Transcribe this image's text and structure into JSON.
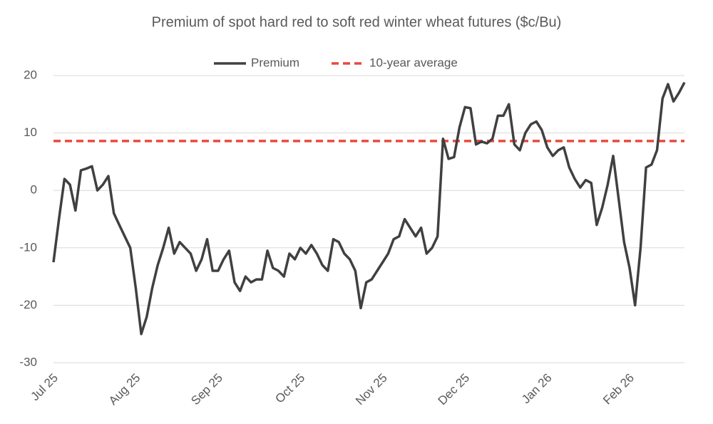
{
  "chart_data": {
    "type": "line",
    "title": "Premium of spot hard red to soft red winter wheat futures ($c/Bu)",
    "categories": [
      "Jul 25",
      null,
      null,
      null,
      null,
      null,
      null,
      null,
      null,
      null,
      null,
      null,
      null,
      null,
      null,
      "Aug 25",
      null,
      null,
      null,
      null,
      null,
      null,
      null,
      null,
      null,
      null,
      null,
      null,
      null,
      null,
      "Sep 25",
      null,
      null,
      null,
      null,
      null,
      null,
      null,
      null,
      null,
      null,
      null,
      null,
      null,
      null,
      "Oct 25",
      null,
      null,
      null,
      null,
      null,
      null,
      null,
      null,
      null,
      null,
      null,
      null,
      null,
      null,
      "Nov 25",
      null,
      null,
      null,
      null,
      null,
      null,
      null,
      null,
      null,
      null,
      null,
      null,
      null,
      null,
      "Dec 25",
      null,
      null,
      null,
      null,
      null,
      null,
      null,
      null,
      null,
      null,
      null,
      null,
      null,
      null,
      "Jan 26",
      null,
      null,
      null,
      null,
      null,
      null,
      null,
      null,
      null,
      null,
      null,
      null,
      null,
      null,
      "Feb 26",
      null,
      null,
      null,
      null,
      null,
      null,
      null,
      null,
      null,
      null
    ],
    "series": [
      {
        "name": "Premium",
        "color": "#404040",
        "values": [
          -12.5,
          -5,
          2,
          1,
          -3.5,
          3.5,
          3.8,
          4.2,
          0,
          1,
          2.5,
          -4,
          -6,
          -8,
          -10,
          -17,
          -25,
          -22,
          -17,
          -13,
          -10,
          -6.5,
          -11,
          -9,
          -10,
          -11,
          -14,
          -12,
          -8.5,
          -14,
          -14,
          -12,
          -10.5,
          -16,
          -17.5,
          -15,
          -16,
          -15.5,
          -15.5,
          -10.5,
          -13.5,
          -14,
          -15,
          -11,
          -12,
          -10,
          -11,
          -9.5,
          -11,
          -13,
          -14,
          -8.5,
          -9,
          -11,
          -12,
          -14,
          -20.5,
          -16,
          -15.5,
          -14,
          -12.5,
          -11,
          -8.5,
          -8,
          -5,
          -6.5,
          -8,
          -6.5,
          -11,
          -10,
          -8,
          9,
          5.5,
          5.8,
          11,
          14.5,
          14.3,
          8,
          8.5,
          8.2,
          9,
          13,
          13,
          15,
          8,
          7,
          10,
          11.5,
          12,
          10.5,
          7.5,
          6,
          7,
          7.5,
          4,
          2,
          0.5,
          1.8,
          1.3,
          -6,
          -3,
          1,
          6,
          -1.5,
          -9,
          -13.5,
          -20,
          -10,
          4,
          4.5,
          7,
          16,
          18.5,
          15.5,
          17,
          18.8
        ]
      }
    ],
    "reference_lines": [
      {
        "name": "10-year average",
        "color": "#e8493f",
        "value": 8.6,
        "style": "dashed"
      }
    ],
    "ylim": [
      -30,
      20
    ],
    "yticks": [
      -30,
      -20,
      -10,
      0,
      10,
      20
    ],
    "grid": true,
    "legend": "top"
  }
}
